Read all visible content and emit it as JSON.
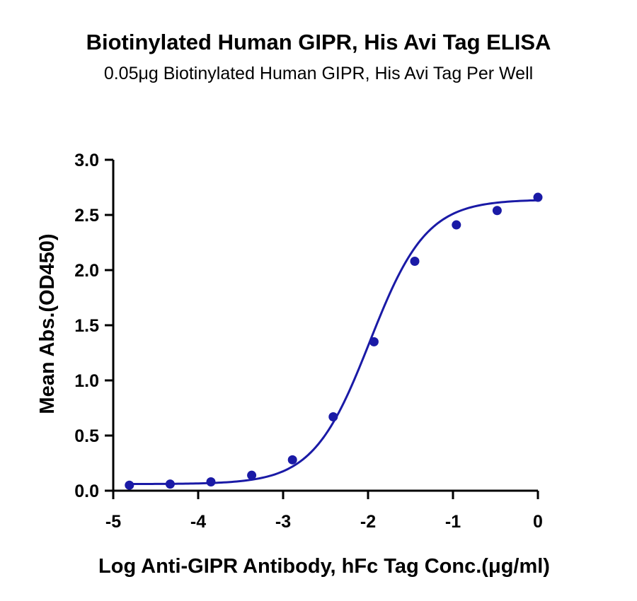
{
  "chart_data": {
    "type": "scatter",
    "title": "Biotinylated Human GIPR, His Avi Tag ELISA",
    "subtitle": "0.05μg Biotinylated Human GIPR, His Avi Tag Per Well",
    "xlabel": "Log Anti-GIPR Antibody, hFc Tag Conc.(μg/ml)",
    "ylabel": "Mean Abs.(OD450)",
    "xlim": [
      -5,
      0
    ],
    "ylim": [
      0,
      3.0
    ],
    "x_ticks": [
      -5,
      -4,
      -3,
      -2,
      -1,
      0
    ],
    "y_ticks": [
      0.0,
      0.5,
      1.0,
      1.5,
      2.0,
      2.5,
      3.0
    ],
    "grid": false,
    "series": [
      {
        "x": [
          -4.81,
          -4.33,
          -3.85,
          -3.37,
          -2.89,
          -2.41,
          -1.93,
          -1.45,
          -0.96,
          -0.48,
          0.0
        ],
        "y": [
          0.05,
          0.06,
          0.08,
          0.14,
          0.28,
          0.67,
          1.35,
          2.08,
          2.41,
          2.54,
          2.66
        ],
        "color": "#1a1aa6",
        "fit": "4PL",
        "fit_params": {
          "bottom": 0.06,
          "top": 2.64,
          "log_ec50": -1.98,
          "hill": 1.3
        }
      }
    ]
  }
}
